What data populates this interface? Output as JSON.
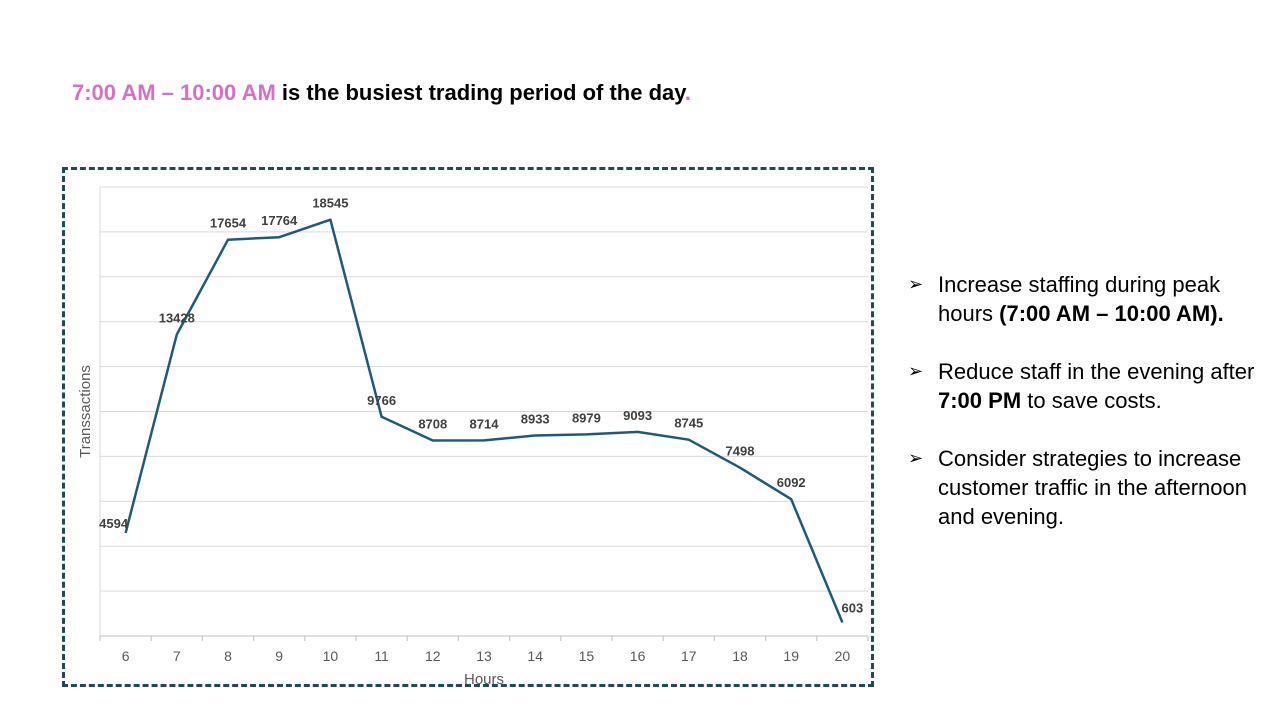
{
  "headline": {
    "highlight": "7:00 AM – 10:00 AM",
    "rest": " is the busiest trading period of the day",
    "period": ".",
    "highlight_color": "#d86fc4"
  },
  "chart_data": {
    "type": "line",
    "title": "",
    "xlabel": "Hours",
    "ylabel": "Transsactions",
    "x": [
      6,
      7,
      8,
      9,
      10,
      11,
      12,
      13,
      14,
      15,
      16,
      17,
      18,
      19,
      20
    ],
    "series": [
      {
        "values": [
          4594,
          13428,
          17654,
          17764,
          18545,
          9766,
          8708,
          8714,
          8933,
          8979,
          9093,
          8745,
          7498,
          6092,
          603
        ]
      }
    ],
    "ylim": [
      0,
      20000
    ],
    "grid": true,
    "line_color": "#1f5a78",
    "border_color": "#1f4a57"
  },
  "bullets": [
    {
      "parts": [
        {
          "text": "Increase staffing during peak hours ",
          "bold": false
        },
        {
          "text": "(7:00 AM – 10:00 AM).",
          "bold": true
        }
      ]
    },
    {
      "parts": [
        {
          "text": "Reduce staff in the evening after ",
          "bold": false
        },
        {
          "text": "7:00 PM",
          "bold": true
        },
        {
          "text": " to save costs.",
          "bold": false
        }
      ]
    },
    {
      "parts": [
        {
          "text": "Consider strategies to increase customer traffic in the afternoon and evening.",
          "bold": false
        }
      ]
    }
  ],
  "bullet_icon": "arrow-bullet-icon"
}
